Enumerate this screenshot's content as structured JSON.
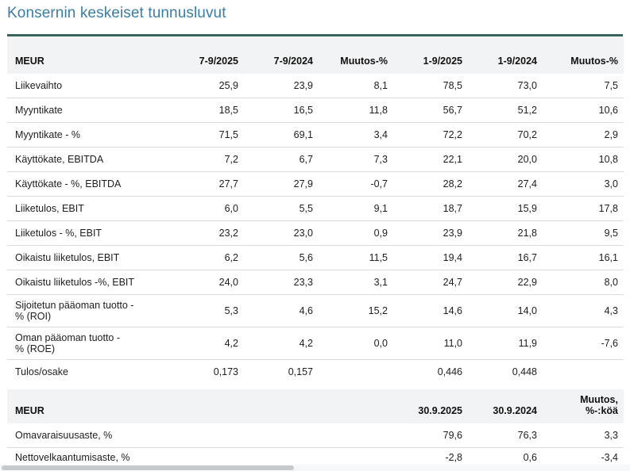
{
  "title": "Konsernin keskeiset tunnusluvut",
  "colors": {
    "title_text": "#3a7ea4",
    "header_band": "#f2f3f5",
    "row_separator": "#d8dcde",
    "top_rule_teal": "#37635a",
    "bottom_rule_teal": "#70998f",
    "body_text": "#1d1d1f",
    "scrollbar_thumb": "#c7cacd"
  },
  "income_table": {
    "headers": [
      "MEUR",
      "7-9/2025",
      "7-9/2024",
      "Muutos-%",
      "1-9/2025",
      "1-9/2024",
      "Muutos-%"
    ],
    "rows": [
      {
        "label": "Liikevaihto",
        "values": [
          "25,9",
          "23,9",
          "8,1",
          "78,5",
          "73,0",
          "7,5"
        ]
      },
      {
        "label": "Myyntikate",
        "values": [
          "18,5",
          "16,5",
          "11,8",
          "56,7",
          "51,2",
          "10,6"
        ]
      },
      {
        "label": "Myyntikate - %",
        "values": [
          "71,5",
          "69,1",
          "3,4",
          "72,2",
          "70,2",
          "2,9"
        ]
      },
      {
        "label": "Käyttökate, EBITDA",
        "values": [
          "7,2",
          "6,7",
          "7,3",
          "22,1",
          "20,0",
          "10,8"
        ]
      },
      {
        "label": "Käyttökate - %, EBITDA",
        "values": [
          "27,7",
          "27,9",
          "-0,7",
          "28,2",
          "27,4",
          "3,0"
        ]
      },
      {
        "label": "Liiketulos, EBIT",
        "values": [
          "6,0",
          "5,5",
          "9,1",
          "18,7",
          "15,9",
          "17,8"
        ]
      },
      {
        "label": "Liiketulos - %, EBIT",
        "values": [
          "23,2",
          "23,0",
          "0,9",
          "23,9",
          "21,8",
          "9,5"
        ]
      },
      {
        "label": "Oikaistu liiketulos, EBIT",
        "values": [
          "6,2",
          "5,6",
          "11,5",
          "19,4",
          "16,7",
          "16,1"
        ]
      },
      {
        "label": "Oikaistu liiketulos -%, EBIT",
        "values": [
          "24,0",
          "23,3",
          "3,1",
          "24,7",
          "22,9",
          "8,0"
        ]
      },
      {
        "label": "Sijoitetun pääoman tuotto -\n% (ROI)",
        "two_line": true,
        "values": [
          "5,3",
          "4,6",
          "15,2",
          "14,6",
          "14,0",
          "4,3"
        ]
      },
      {
        "label": "Oman pääoman tuotto -\n% (ROE)",
        "two_line": true,
        "values": [
          "4,2",
          "4,2",
          "0,0",
          "11,0",
          "11,9",
          "-7,6"
        ]
      },
      {
        "label": "Tulos/osake",
        "no_separator": true,
        "values": [
          "0,173",
          "0,157",
          "",
          "0,446",
          "0,448",
          ""
        ]
      }
    ]
  },
  "balance_table": {
    "headers": [
      "MEUR",
      "",
      "",
      "",
      "30.9.2025",
      "30.9.2024",
      "Muutos,\n%-:köä"
    ],
    "rows": [
      {
        "label": "Omavaraisuusaste, %",
        "values": [
          "",
          "",
          "",
          "79,6",
          "76,3",
          "3,3"
        ]
      },
      {
        "label": "Nettovelkaantumisaste, %",
        "values": [
          "",
          "",
          "",
          "-2,8",
          "0,6",
          "-3,4"
        ]
      }
    ]
  }
}
